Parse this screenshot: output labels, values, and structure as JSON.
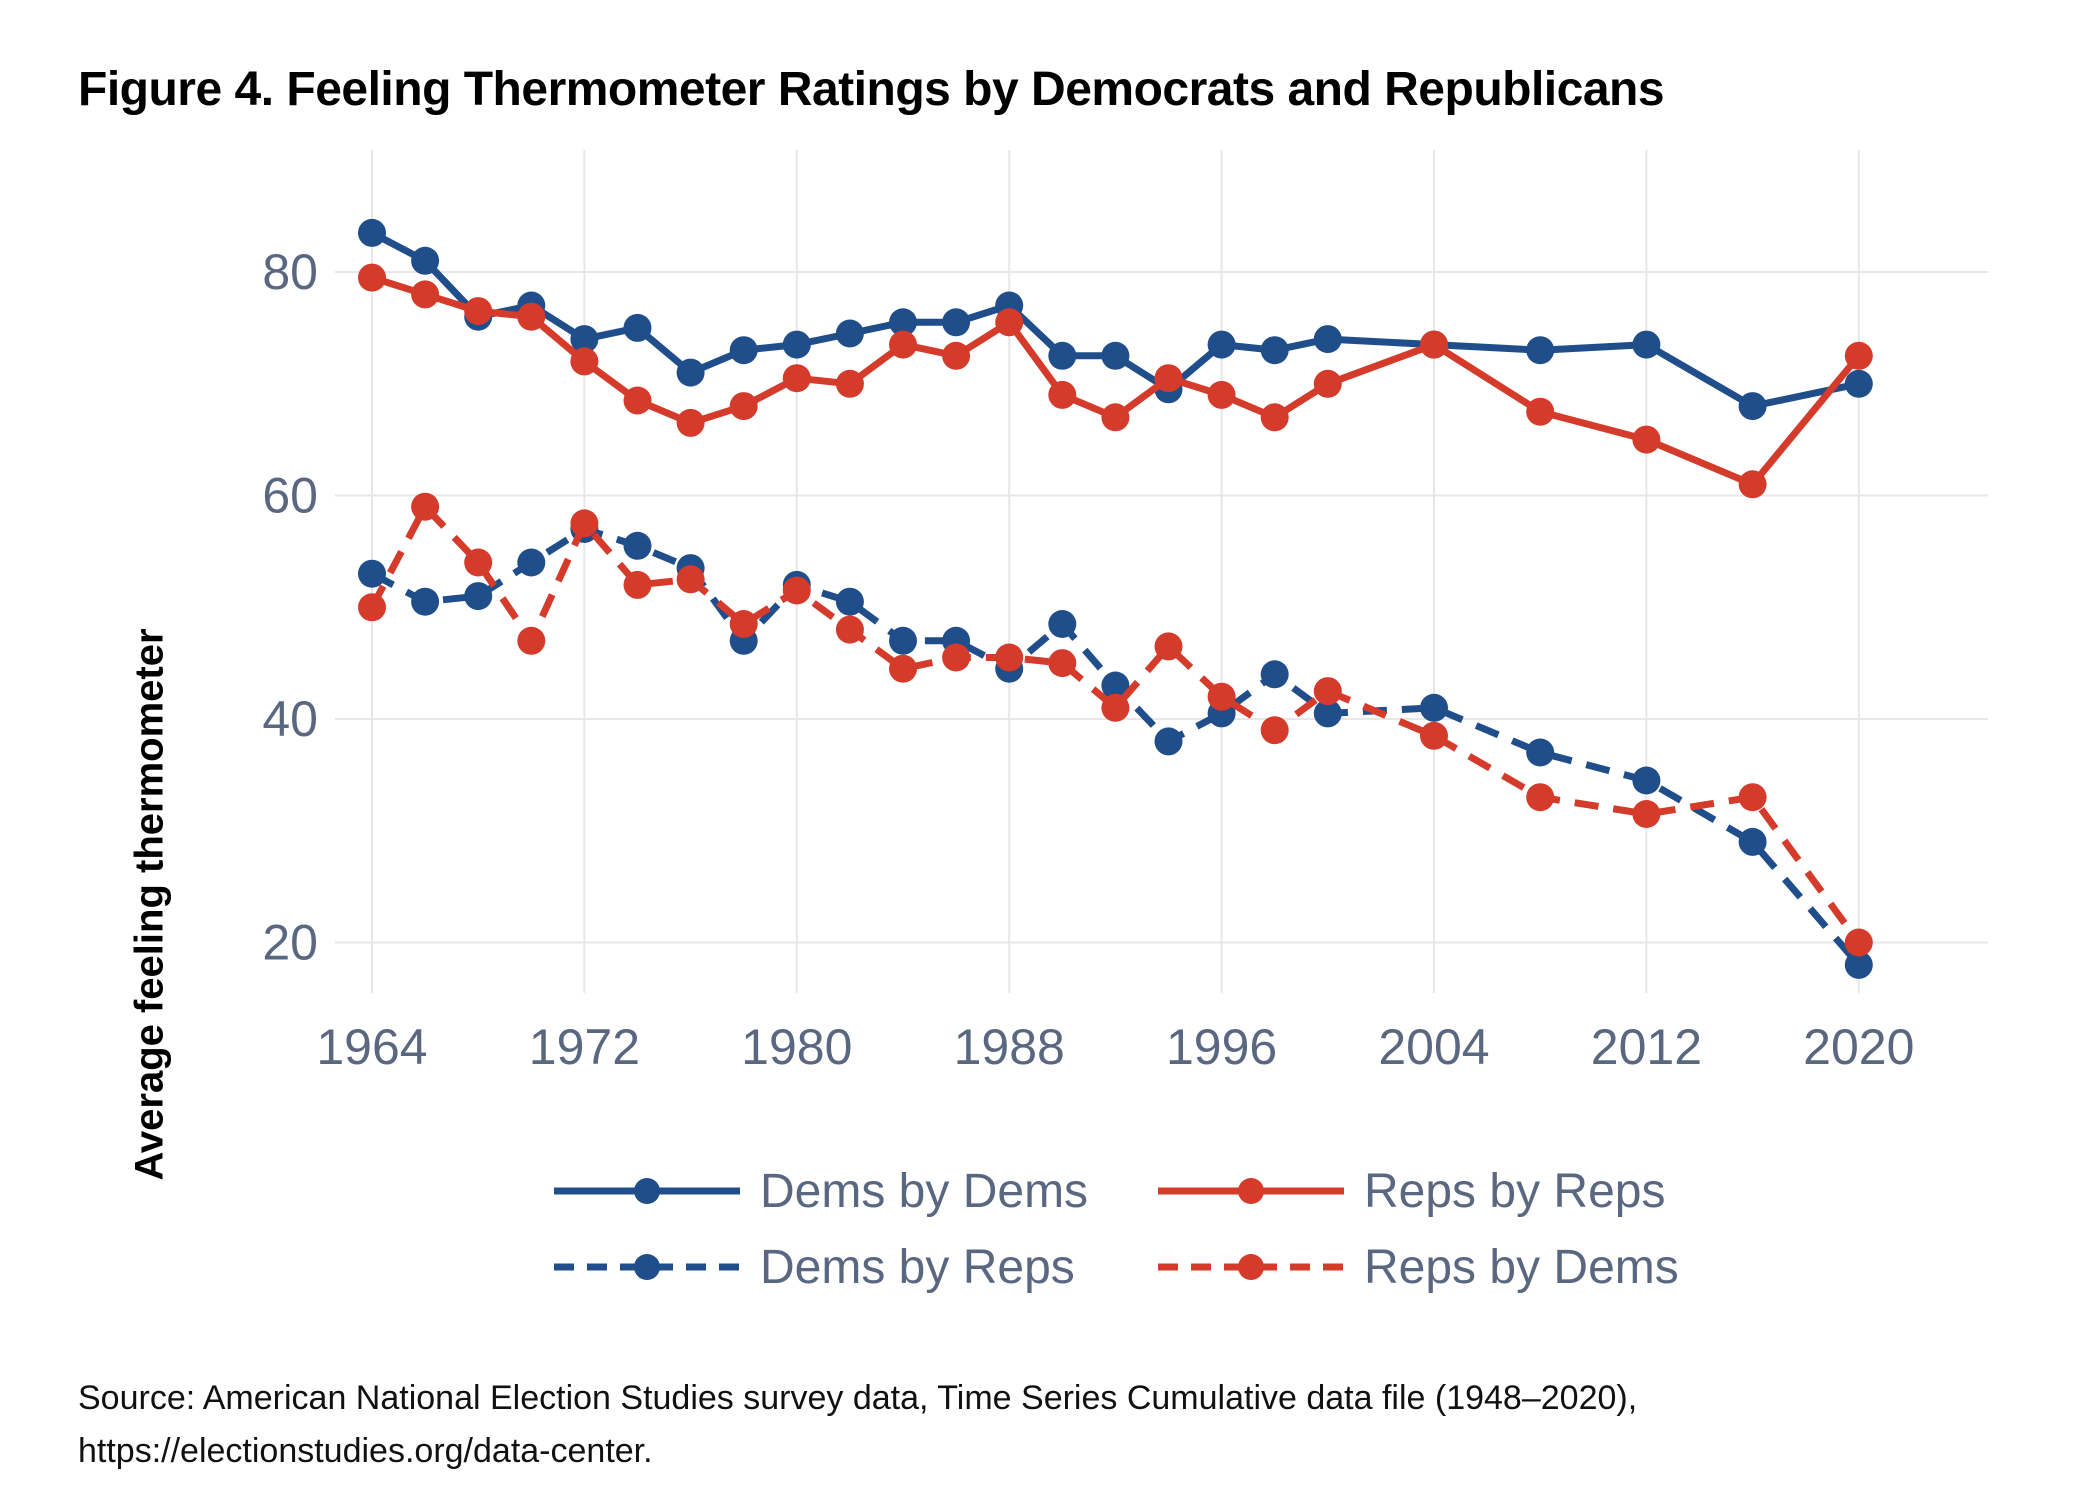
{
  "figure_title": "Figure 4. Feeling Thermometer Ratings by Democrats and Republicans",
  "source": {
    "line1": "Source: American National Election Studies survey data, Time Series Cumulative data file (1948–2020),",
    "line2": "https://electionstudies.org/data-center."
  },
  "colors": {
    "dem_blue": "#1f4e8b",
    "rep_red": "#d43b2b",
    "axis_text": "#5a6780",
    "gridline": "#e7e7e7",
    "title_text": "#000000",
    "source_text": "#111111"
  },
  "chart_data": {
    "type": "line",
    "title": "Figure 4. Feeling Thermometer Ratings by Democrats and Republicans",
    "xlabel": "",
    "ylabel": "Average feeling thermometer",
    "grid": true,
    "legend_position": "bottom",
    "xticks": [
      1964,
      1972,
      1980,
      1988,
      1996,
      2004,
      2012,
      2020
    ],
    "yticks": [
      20,
      40,
      60,
      80
    ],
    "xlim": [
      1962.5,
      2024.9
    ],
    "ylim": [
      15.5,
      91
    ],
    "x": [
      1964,
      1966,
      1968,
      1970,
      1972,
      1974,
      1976,
      1978,
      1980,
      1982,
      1984,
      1986,
      1988,
      1990,
      1992,
      1994,
      1996,
      1998,
      2000,
      2004,
      2008,
      2012,
      2016,
      2020
    ],
    "series": [
      {
        "name": "Dems by Dems",
        "color_key": "dem_blue",
        "style": "solid",
        "values": [
          83.5,
          81,
          76,
          77,
          74,
          75,
          71,
          73,
          73.5,
          74.5,
          75.5,
          75.5,
          77,
          72.5,
          72.5,
          69.5,
          73.5,
          73,
          74,
          73.5,
          73,
          73.5,
          68,
          70
        ]
      },
      {
        "name": "Reps by Reps",
        "color_key": "rep_red",
        "style": "solid",
        "values": [
          79.5,
          78,
          76.5,
          76,
          72,
          68.5,
          66.5,
          68,
          70.5,
          70,
          73.5,
          72.5,
          75.5,
          69,
          67,
          70.5,
          69,
          67,
          70,
          73.5,
          67.5,
          65,
          61,
          72.5
        ]
      },
      {
        "name": "Dems by Reps",
        "color_key": "dem_blue",
        "style": "dashed",
        "values": [
          53,
          50.5,
          51,
          54,
          57,
          55.5,
          53.5,
          47,
          52,
          50.5,
          47,
          47,
          44.5,
          48.5,
          43,
          38,
          40.5,
          44,
          40.5,
          41,
          37,
          34.5,
          29,
          18
        ]
      },
      {
        "name": "Reps by Dems",
        "color_key": "rep_red",
        "style": "dashed",
        "values": [
          50,
          59,
          54,
          47,
          57.5,
          52,
          52.5,
          48.5,
          51.5,
          48,
          44.5,
          45.5,
          45.5,
          45,
          41,
          46.5,
          42,
          39,
          42.5,
          38.5,
          33,
          31.5,
          33,
          20
        ]
      }
    ]
  }
}
